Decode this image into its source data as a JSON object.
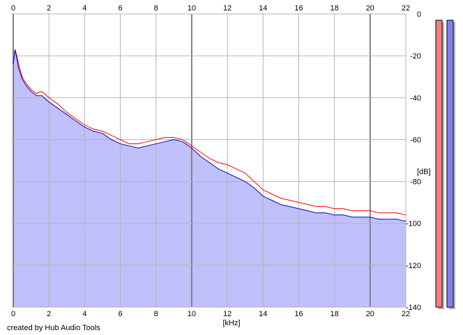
{
  "chart_data": {
    "type": "area",
    "title": "",
    "xlabel": "[kHz]",
    "ylabel": "[dB]",
    "xlim": [
      0,
      22
    ],
    "ylim": [
      -140,
      0
    ],
    "x_ticks": [
      0,
      2,
      4,
      6,
      8,
      10,
      12,
      14,
      16,
      18,
      20,
      22
    ],
    "y_ticks": [
      0,
      -20,
      -40,
      -60,
      -80,
      -100,
      -120,
      -140
    ],
    "grid": true,
    "series": [
      {
        "color": "#ff0000",
        "x": [
          0,
          0.1,
          0.2,
          0.3,
          0.5,
          0.7,
          1,
          1.3,
          1.6,
          2,
          2.5,
          3,
          3.5,
          4,
          4.5,
          5,
          5.5,
          6,
          6.5,
          7,
          7.5,
          8,
          8.5,
          9,
          9.5,
          10,
          10.5,
          11,
          11.5,
          12,
          12.5,
          13,
          13.5,
          14,
          14.5,
          15,
          15.5,
          16,
          16.5,
          17,
          17.5,
          18,
          18.5,
          19,
          19.5,
          20,
          20.5,
          21,
          21.5,
          22
        ],
        "y": [
          -22,
          -17,
          -20,
          -24,
          -30,
          -33,
          -36,
          -38,
          -37,
          -40,
          -43,
          -47,
          -50,
          -53,
          -55,
          -56,
          -58,
          -60,
          -62,
          -62,
          -61,
          -60,
          -59,
          -59,
          -60,
          -63,
          -66,
          -69,
          -71,
          -72,
          -74,
          -76,
          -80,
          -84,
          -86,
          -88,
          -89,
          -90,
          -91,
          -92,
          -92,
          -93,
          -93,
          -94,
          -94,
          -94,
          -95,
          -95,
          -95,
          -96
        ]
      },
      {
        "color": "#0000c8",
        "x": [
          0,
          0.1,
          0.2,
          0.3,
          0.5,
          0.7,
          1,
          1.3,
          1.6,
          2,
          2.5,
          3,
          3.5,
          4,
          4.5,
          5,
          5.5,
          6,
          6.5,
          7,
          7.5,
          8,
          8.5,
          9,
          9.5,
          10,
          10.5,
          11,
          11.5,
          12,
          12.5,
          13,
          13.5,
          14,
          14.5,
          15,
          15.5,
          16,
          16.5,
          17,
          17.5,
          18,
          18.5,
          19,
          19.5,
          20,
          20.5,
          21,
          21.5,
          22
        ],
        "y": [
          -24,
          -17,
          -21,
          -26,
          -31,
          -34,
          -37,
          -39,
          -39,
          -42,
          -45,
          -48,
          -51,
          -54,
          -56,
          -57,
          -60,
          -62,
          -63,
          -64,
          -63,
          -62,
          -61,
          -60,
          -61,
          -64,
          -68,
          -71,
          -74,
          -76,
          -78,
          -80,
          -83,
          -87,
          -89,
          -91,
          -92,
          -93,
          -94,
          -95,
          -95,
          -96,
          -96,
          -97,
          -97,
          -97,
          -98,
          -98,
          -98,
          -99
        ]
      }
    ],
    "fill_color": "#c0c0fa",
    "level_meters": [
      {
        "color": "#f08080",
        "level_db": -3
      },
      {
        "color": "#8080f0",
        "level_db": -3
      }
    ]
  },
  "footer": {
    "credit": "created by Hub Audio Tools"
  }
}
